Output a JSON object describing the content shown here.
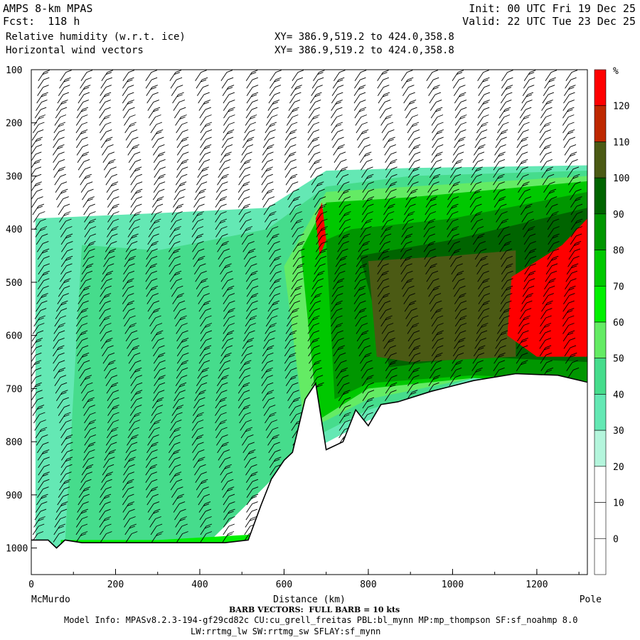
{
  "header": {
    "model": "AMPS 8-km MPAS",
    "init": "Init: 00 UTC Fri 19 Dec 25",
    "fcst": "Fcst:  118 h",
    "valid": "Valid: 22 UTC Tue 23 Dec 25",
    "field1": "Relative humidity (w.r.t. ice)",
    "field2": "Horizontal wind vectors",
    "xy1": "XY= 386.9,519.2 to 424.0,358.8",
    "xy2": "XY= 386.9,519.2 to 424.0,358.8"
  },
  "footer": {
    "barb": "BARB VECTORS:  FULL BARB = 10 kts",
    "model_info": "Model Info: MPASv8.2.3-194-gf29cd82c CU:cu_grell_freitas PBL:bl_mynn MP:mp_thompson SF:sf_noahmp 8.0",
    "model_info2": "LW:rrtmg_lw SW:rrtmg_sw SFLAY:sf_mynn"
  },
  "chart_data": {
    "type": "heatmap",
    "xlabel": "Distance (km)",
    "x_left_label": "McMurdo",
    "x_right_label": "Pole",
    "xlim": [
      0,
      1320
    ],
    "ylim": [
      1050,
      100
    ],
    "x_ticks": [
      "0",
      "200",
      "400",
      "600",
      "800",
      "1000",
      "1200"
    ],
    "y_ticks": [
      "100",
      "200",
      "300",
      "400",
      "500",
      "600",
      "700",
      "800",
      "900",
      "1000"
    ],
    "colorbar": {
      "unit": "%",
      "levels": [
        "0",
        "10",
        "20",
        "30",
        "40",
        "50",
        "60",
        "70",
        "80",
        "90",
        "100",
        "110",
        "120"
      ],
      "colors": [
        "#ffffff",
        "#ffffff",
        "#ffffff",
        "#b4f5dc",
        "#64e8b4",
        "#46dc8c",
        "#64eb64",
        "#00f000",
        "#00c800",
        "#009600",
        "#006400",
        "#4b5a14",
        "#be2800",
        "#ff0000"
      ]
    },
    "terrain": [
      {
        "x": 0,
        "p": 985
      },
      {
        "x": 40,
        "p": 985
      },
      {
        "x": 60,
        "p": 1000
      },
      {
        "x": 80,
        "p": 985
      },
      {
        "x": 120,
        "p": 990
      },
      {
        "x": 300,
        "p": 990
      },
      {
        "x": 460,
        "p": 990
      },
      {
        "x": 515,
        "p": 985
      },
      {
        "x": 545,
        "p": 920
      },
      {
        "x": 570,
        "p": 870
      },
      {
        "x": 600,
        "p": 835
      },
      {
        "x": 620,
        "p": 820
      },
      {
        "x": 650,
        "p": 720
      },
      {
        "x": 675,
        "p": 690
      },
      {
        "x": 700,
        "p": 815
      },
      {
        "x": 740,
        "p": 800
      },
      {
        "x": 770,
        "p": 740
      },
      {
        "x": 800,
        "p": 770
      },
      {
        "x": 830,
        "p": 730
      },
      {
        "x": 870,
        "p": 725
      },
      {
        "x": 950,
        "p": 705
      },
      {
        "x": 1050,
        "p": 685
      },
      {
        "x": 1150,
        "p": 672
      },
      {
        "x": 1250,
        "p": 675
      },
      {
        "x": 1320,
        "p": 688
      }
    ],
    "rh_regions": [
      {
        "level": "30",
        "polygon": [
          [
            10,
            1000
          ],
          [
            10,
            380
          ],
          [
            300,
            370
          ],
          [
            560,
            360
          ],
          [
            700,
            290
          ],
          [
            900,
            285
          ],
          [
            1320,
            280
          ],
          [
            1320,
            720
          ],
          [
            1050,
            690
          ],
          [
            800,
            760
          ],
          [
            560,
            860
          ],
          [
            400,
            995
          ],
          [
            10,
            1000
          ]
        ]
      },
      {
        "level": "40",
        "polygon": [
          [
            80,
            990
          ],
          [
            120,
            430
          ],
          [
            300,
            440
          ],
          [
            560,
            400
          ],
          [
            700,
            320
          ],
          [
            900,
            300
          ],
          [
            1320,
            290
          ],
          [
            1320,
            690
          ],
          [
            1050,
            680
          ],
          [
            800,
            740
          ],
          [
            650,
            800
          ],
          [
            560,
            880
          ],
          [
            420,
            990
          ]
        ]
      },
      {
        "level": "50",
        "polygon": [
          [
            600,
            470
          ],
          [
            700,
            330
          ],
          [
            900,
            320
          ],
          [
            1320,
            300
          ],
          [
            1320,
            690
          ],
          [
            1050,
            680
          ],
          [
            800,
            720
          ],
          [
            650,
            780
          ]
        ]
      },
      {
        "level": "70",
        "polygon": [
          [
            640,
            440
          ],
          [
            700,
            350
          ],
          [
            900,
            340
          ],
          [
            1320,
            310
          ],
          [
            1320,
            690
          ],
          [
            1050,
            680
          ],
          [
            800,
            700
          ],
          [
            680,
            760
          ]
        ]
      },
      {
        "level": "80",
        "polygon": [
          [
            700,
            420
          ],
          [
            760,
            400
          ],
          [
            1000,
            380
          ],
          [
            1320,
            330
          ],
          [
            1320,
            685
          ],
          [
            1050,
            675
          ],
          [
            800,
            690
          ],
          [
            720,
            720
          ]
        ]
      },
      {
        "level": "90",
        "polygon": [
          [
            780,
            450
          ],
          [
            1000,
            420
          ],
          [
            1320,
            360
          ],
          [
            1320,
            650
          ],
          [
            1050,
            640
          ],
          [
            850,
            660
          ]
        ]
      },
      {
        "level": "100",
        "polygon": [
          [
            800,
            460
          ],
          [
            1000,
            450
          ],
          [
            1150,
            440
          ],
          [
            1150,
            640
          ],
          [
            900,
            650
          ],
          [
            820,
            640
          ]
        ]
      },
      {
        "level": "120",
        "polygon": [
          [
            1140,
            490
          ],
          [
            1260,
            430
          ],
          [
            1320,
            380
          ],
          [
            1320,
            640
          ],
          [
            1200,
            640
          ],
          [
            1130,
            600
          ]
        ]
      },
      {
        "level": "120",
        "polygon": [
          [
            675,
            380
          ],
          [
            690,
            350
          ],
          [
            700,
            420
          ],
          [
            685,
            450
          ]
        ]
      },
      {
        "level": "60",
        "polygon": [
          [
            70,
            985
          ],
          [
            300,
            985
          ],
          [
            520,
            975
          ],
          [
            520,
            990
          ],
          [
            70,
            995
          ]
        ]
      }
    ],
    "wind_barbs": "profiles every ~55 km from surface to 100 hPa"
  }
}
